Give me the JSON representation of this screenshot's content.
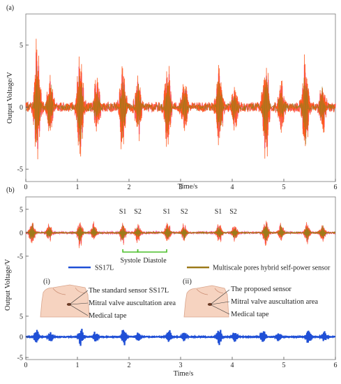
{
  "figure": {
    "panel_a_label": "(a)",
    "panel_b_label": "(b)",
    "ylabel": "Output Voltage/V",
    "xlabel": "Time/s"
  },
  "colors": {
    "signal_pink": "#f06ad0",
    "signal_orange": "#ff5a1e",
    "signal_olive": "#9c7a1a",
    "ss17l_blue": "#1f4fd6",
    "systole_bracket": "#4cbf2a",
    "axis": "#555555",
    "skin": "#f6d3c0"
  },
  "chart_data": [
    {
      "type": "line",
      "panel": "(a)",
      "xlabel": "Time/s",
      "ylabel": "Output Voltage/V",
      "xlim": [
        0,
        6
      ],
      "ylim": [
        -6,
        7.5
      ],
      "xticks": [
        0,
        1,
        2,
        3,
        4,
        5,
        6
      ],
      "yticks": [
        -5,
        0,
        5
      ],
      "grid": false,
      "series": [
        {
          "color": "#ff5a1e",
          "noise_level": 0.4,
          "beats": [
            {
              "t": 0.22,
              "peak": 6.1,
              "trough": -4.9
            },
            {
              "t": 0.47,
              "peak": 2.8,
              "trough": -2.6
            },
            {
              "t": 1.05,
              "peak": 5.6,
              "trough": -5.4
            },
            {
              "t": 1.38,
              "peak": 2.6,
              "trough": -2.4
            },
            {
              "t": 1.88,
              "peak": 4.0,
              "trough": -4.4
            },
            {
              "t": 2.18,
              "peak": 2.8,
              "trough": -2.7
            },
            {
              "t": 2.75,
              "peak": 4.2,
              "trough": -4.2
            },
            {
              "t": 3.08,
              "peak": 2.6,
              "trough": -2.5
            },
            {
              "t": 3.75,
              "peak": 4.4,
              "trough": -3.9
            },
            {
              "t": 4.05,
              "peak": 2.4,
              "trough": -2.3
            },
            {
              "t": 4.65,
              "peak": 4.6,
              "trough": -5.0
            },
            {
              "t": 4.95,
              "peak": 2.5,
              "trough": -2.2
            },
            {
              "t": 5.42,
              "peak": 4.8,
              "trough": -4.6
            },
            {
              "t": 5.75,
              "peak": 2.4,
              "trough": -2.4
            }
          ]
        }
      ]
    },
    {
      "type": "line",
      "panel": "(b) top",
      "xlim": [
        0,
        6
      ],
      "ylim": [
        -6.5,
        7.5
      ],
      "yticks": [
        -5,
        0,
        5
      ],
      "series": [
        {
          "name": "Multiscale pores hybrid self-power sensor",
          "color": "#9c7a1a",
          "noise_level": 0.2,
          "beats": [
            {
              "t": 0.12,
              "peak": 3.4,
              "trough": -3.1
            },
            {
              "t": 0.45,
              "peak": 2.6,
              "trough": -2.3
            },
            {
              "t": 1.05,
              "peak": 3.2,
              "trough": -3.6
            },
            {
              "t": 1.32,
              "peak": 2.6,
              "trough": -2.0
            },
            {
              "t": 1.88,
              "peak": 2.6,
              "trough": -3.0
            },
            {
              "t": 2.17,
              "peak": 2.2,
              "trough": -2.6
            },
            {
              "t": 2.75,
              "peak": 2.8,
              "trough": -2.8
            },
            {
              "t": 3.07,
              "peak": 2.4,
              "trough": -2.4
            },
            {
              "t": 3.75,
              "peak": 2.7,
              "trough": -2.5
            },
            {
              "t": 4.05,
              "peak": 2.2,
              "trough": -2.2
            },
            {
              "t": 4.65,
              "peak": 3.6,
              "trough": -3.6
            },
            {
              "t": 4.95,
              "peak": 2.5,
              "trough": -2.3
            },
            {
              "t": 5.45,
              "peak": 2.8,
              "trough": -2.8
            },
            {
              "t": 5.75,
              "peak": 2.4,
              "trough": -2.6
            }
          ]
        }
      ],
      "annotations": [
        {
          "text": "S1",
          "x": 1.88
        },
        {
          "text": "S2",
          "x": 2.17
        },
        {
          "text": "S1",
          "x": 2.73
        },
        {
          "text": "S2",
          "x": 3.07
        },
        {
          "text": "S1",
          "x": 3.73
        },
        {
          "text": "S2",
          "x": 4.02
        },
        {
          "text": "Systole",
          "x": 2.03
        },
        {
          "text": "Diastole",
          "x": 2.5
        }
      ],
      "brackets": [
        {
          "x_start": 1.88,
          "x_end": 2.17
        },
        {
          "x_start": 2.17,
          "x_end": 2.73
        }
      ]
    },
    {
      "type": "line",
      "panel": "(b) bottom",
      "xlabel": "Time/s",
      "xlim": [
        0,
        6
      ],
      "ylim": [
        -5.5,
        6
      ],
      "xticks": [
        0,
        1,
        2,
        3,
        4,
        5,
        6
      ],
      "yticks": [
        -5,
        0,
        5
      ],
      "series": [
        {
          "name": "SS17L",
          "color": "#1f4fd6",
          "noise_level": 0.1,
          "beats": [
            {
              "t": 0.2,
              "peak": 2.3,
              "trough": -2.0
            },
            {
              "t": 0.48,
              "peak": 1.4,
              "trough": -1.4
            },
            {
              "t": 1.07,
              "peak": 2.5,
              "trough": -2.4
            },
            {
              "t": 1.35,
              "peak": 1.6,
              "trough": -1.6
            },
            {
              "t": 1.9,
              "peak": 2.4,
              "trough": -2.4
            },
            {
              "t": 2.18,
              "peak": 1.5,
              "trough": -1.5
            },
            {
              "t": 2.77,
              "peak": 2.0,
              "trough": -1.7
            },
            {
              "t": 3.07,
              "peak": 1.5,
              "trough": -1.4
            },
            {
              "t": 3.75,
              "peak": 2.2,
              "trough": -2.3
            },
            {
              "t": 4.05,
              "peak": 1.5,
              "trough": -1.4
            },
            {
              "t": 4.6,
              "peak": 2.1,
              "trough": -2.1
            },
            {
              "t": 4.9,
              "peak": 1.3,
              "trough": -1.5
            },
            {
              "t": 5.48,
              "peak": 2.4,
              "trough": -2.0
            },
            {
              "t": 5.78,
              "peak": 1.7,
              "trough": -1.4
            }
          ]
        }
      ]
    }
  ],
  "legend": {
    "items": [
      {
        "label": "SS17L",
        "color": "#1f4fd6"
      },
      {
        "label": "Multiscale pores hybrid self-power sensor",
        "color": "#9c7a1a"
      }
    ]
  },
  "insets": [
    {
      "tag": "(i)",
      "labels": [
        "The standard sensor SS17L",
        "Mitral valve auscultation area",
        "Medical tape"
      ]
    },
    {
      "tag": "(ii)",
      "labels": [
        "The proposed sensor",
        "Mitral valve auscultation area",
        "Medical tape"
      ]
    }
  ]
}
